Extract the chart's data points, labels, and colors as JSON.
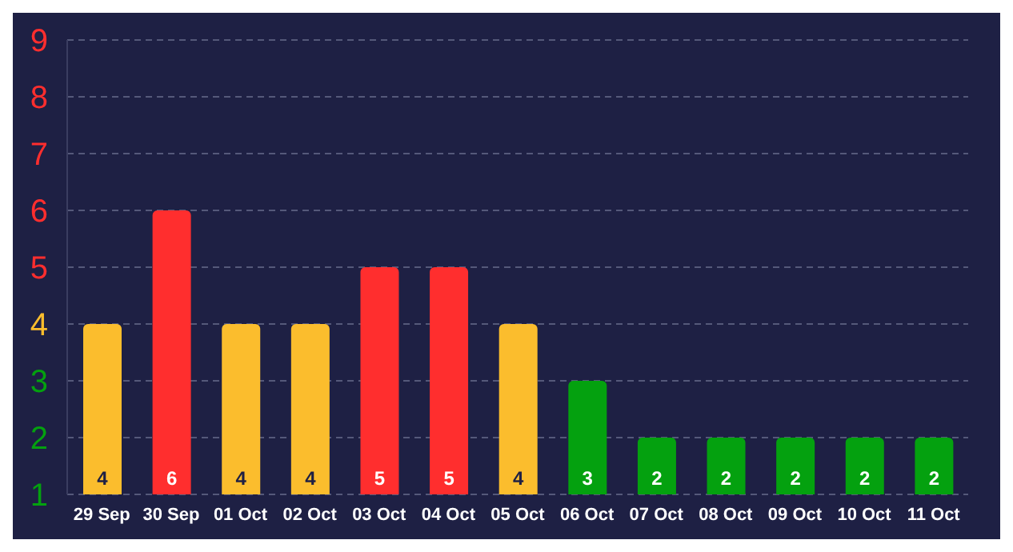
{
  "chart_data": {
    "type": "bar",
    "categories": [
      "29 Sep",
      "30 Sep",
      "01 Oct",
      "02 Oct",
      "03 Oct",
      "04 Oct",
      "05 Oct",
      "06 Oct",
      "07 Oct",
      "08 Oct",
      "09 Oct",
      "10 Oct",
      "11 Oct"
    ],
    "values": [
      4,
      6,
      4,
      4,
      5,
      5,
      4,
      3,
      2,
      2,
      2,
      2,
      2
    ],
    "colors": [
      "#fbbd2d",
      "#ff2e2e",
      "#fbbd2d",
      "#fbbd2d",
      "#ff2e2e",
      "#ff2e2e",
      "#fbbd2d",
      "#04a10f",
      "#04a10f",
      "#04a10f",
      "#04a10f",
      "#04a10f",
      "#04a10f"
    ],
    "ylim": [
      1,
      9
    ],
    "yticks": [
      1,
      2,
      3,
      4,
      5,
      6,
      7,
      8,
      9
    ],
    "grid": "y",
    "data_labels": true
  }
}
